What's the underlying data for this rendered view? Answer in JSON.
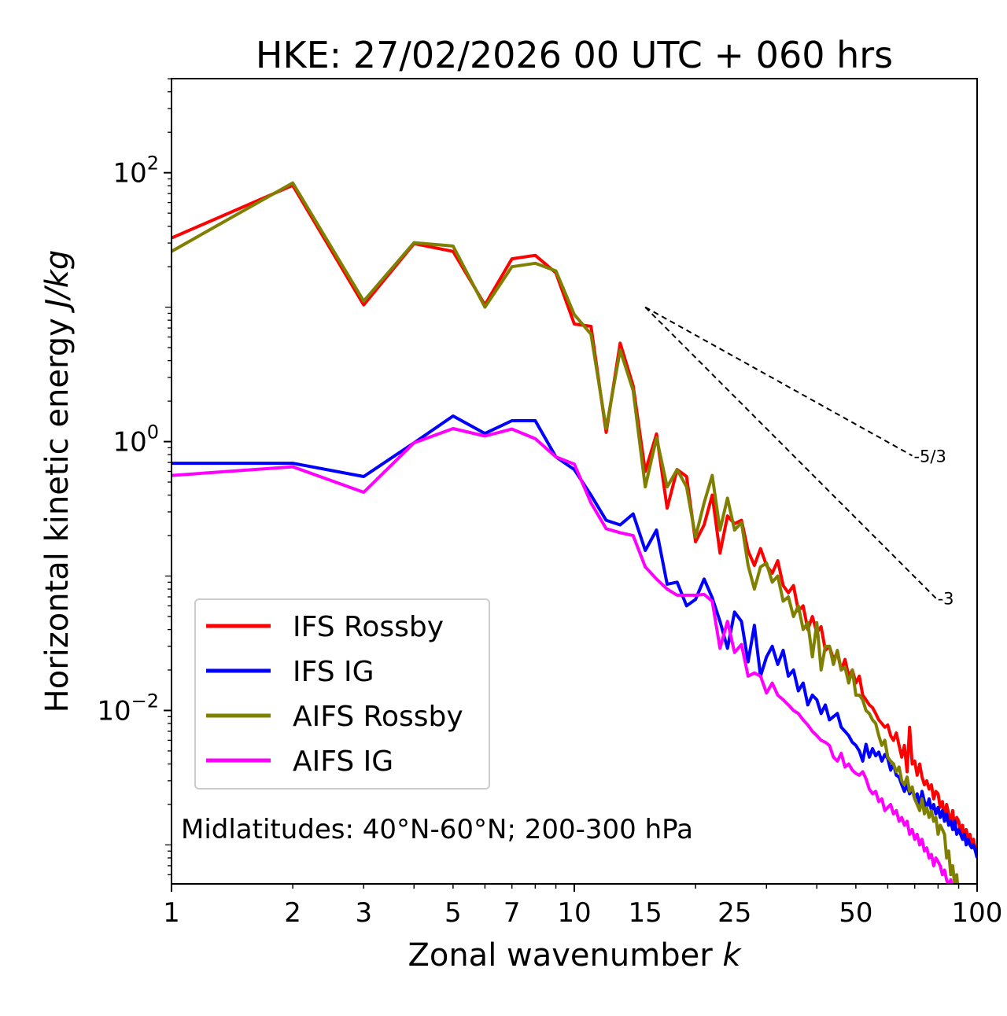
{
  "chart_data": {
    "type": "line",
    "title": "HKE: 27/02/2026 00 UTC + 060 hrs",
    "xlabel": "Zonal wavenumber",
    "xlabel_var": "k",
    "ylabel": "Horizontal kinetic energy",
    "ylabel_unit": "J/kg",
    "xscale": "log",
    "yscale": "log",
    "xlim": [
      1,
      100
    ],
    "ylim_log10": [
      -3.29,
      2.7
    ],
    "x_tick_labels": [
      "1",
      "2",
      "3",
      "5",
      "7",
      "10",
      "15",
      "25",
      "50",
      "100"
    ],
    "x_tick_values": [
      1,
      2,
      3,
      5,
      7,
      10,
      15,
      25,
      50,
      100
    ],
    "y_tick_labels": [
      {
        "base": "10",
        "exp": "2",
        "value": 2
      },
      {
        "base": "10",
        "exp": "0",
        "value": 0
      },
      {
        "base": "10",
        "exp": "−2",
        "value": -2
      }
    ],
    "annotation": "Midlatitudes: 40°N-60°N; 200-300 hPa",
    "legend_position": "lower-left",
    "reference_lines": [
      {
        "label": "-5/3",
        "slope": -1.6667,
        "k_start": 15,
        "k_end": 69,
        "e_start": 10
      },
      {
        "label": "-3",
        "slope": -3,
        "k_start": 15,
        "k_end": 79,
        "e_start": 10
      }
    ],
    "series": [
      {
        "name": "IFS Rossby",
        "color": "#ff0000",
        "values": [
          32.7,
          80.6,
          10.4,
          29.7,
          26,
          10.4,
          22.9,
          24.3,
          18,
          7.5,
          7.2,
          1.17,
          5.4,
          2.6,
          0.6,
          1.14,
          0.32,
          0.62,
          0.55,
          0.18,
          0.24,
          0.4,
          0.148,
          0.28,
          0.245,
          0.26,
          0.154,
          0.12,
          0.16,
          0.12,
          0.105,
          0.13,
          0.085,
          0.075,
          0.085,
          0.055,
          0.06,
          0.04,
          0.05,
          0.038,
          0.042,
          0.028,
          0.03,
          0.024,
          0.027,
          0.02,
          0.024,
          0.018,
          0.02,
          0.016,
          0.018,
          0.013,
          0.012,
          0.011,
          0.0105,
          0.0095,
          0.0085,
          0.008,
          0.0075,
          0.0078,
          0.0065,
          0.006,
          0.0068,
          0.0055,
          0.0045,
          0.0055,
          0.0035,
          0.0075,
          0.004,
          0.0042,
          0.0033,
          0.004,
          0.0032,
          0.0028,
          0.003,
          0.0026,
          0.0028,
          0.0022,
          0.0025,
          0.0024,
          0.0019,
          0.0021,
          0.0016,
          0.002,
          0.0017,
          0.0015,
          0.0018,
          0.0013,
          0.0016,
          0.0015,
          0.0012,
          0.0014,
          0.0011,
          0.0013,
          0.0011,
          0.0012,
          0.001,
          0.0011,
          0.0009,
          0.001
        ]
      },
      {
        "name": "IFS IG",
        "color": "#0000ff",
        "values": [
          0.69,
          0.69,
          0.55,
          0.98,
          1.55,
          1.15,
          1.43,
          1.43,
          0.77,
          0.62,
          0.4,
          0.26,
          0.24,
          0.29,
          0.155,
          0.22,
          0.087,
          0.09,
          0.06,
          0.067,
          0.095,
          0.069,
          0.046,
          0.029,
          0.054,
          0.046,
          0.023,
          0.043,
          0.018,
          0.025,
          0.03,
          0.022,
          0.028,
          0.018,
          0.02,
          0.014,
          0.016,
          0.011,
          0.013,
          0.012,
          0.0095,
          0.011,
          0.0085,
          0.009,
          0.0095,
          0.0075,
          0.007,
          0.0065,
          0.0058,
          0.0055,
          0.005,
          0.0042,
          0.0056,
          0.0045,
          0.0052,
          0.0046,
          0.0049,
          0.0042,
          0.0047,
          0.0044,
          0.0036,
          0.004,
          0.0033,
          0.0032,
          0.0028,
          0.0025,
          0.0028,
          0.0024,
          0.0026,
          0.0022,
          0.0024,
          0.002,
          0.0025,
          0.0021,
          0.0019,
          0.0022,
          0.0018,
          0.002,
          0.0017,
          0.0019,
          0.0016,
          0.0018,
          0.0015,
          0.0017,
          0.0014,
          0.0015,
          0.0013,
          0.0015,
          0.0012,
          0.0013,
          0.0012,
          0.0011,
          0.0012,
          0.001,
          0.0011,
          0.001,
          0.00095,
          0.001,
          0.0009,
          0.0008
        ]
      },
      {
        "name": "AIFS Rossby",
        "color": "#808000",
        "values": [
          26,
          84,
          11.1,
          30.2,
          28.5,
          10,
          20,
          21.2,
          18.6,
          8.8,
          6.3,
          1.25,
          4.8,
          2.4,
          0.46,
          1.07,
          0.46,
          0.62,
          0.46,
          0.195,
          0.35,
          0.56,
          0.22,
          0.38,
          0.22,
          0.25,
          0.12,
          0.08,
          0.117,
          0.125,
          0.09,
          0.1,
          0.065,
          0.07,
          0.05,
          0.06,
          0.04,
          0.045,
          0.025,
          0.045,
          0.02,
          0.03,
          0.03,
          0.022,
          0.028,
          0.02,
          0.021,
          0.016,
          0.02,
          0.013,
          0.013,
          0.012,
          0.01,
          0.0095,
          0.0085,
          0.008,
          0.0065,
          0.0055,
          0.006,
          0.0045,
          0.0042,
          0.004,
          0.0035,
          0.0038,
          0.003,
          0.0028,
          0.0032,
          0.0025,
          0.0027,
          0.0022,
          0.002,
          0.0018,
          0.0022,
          0.0017,
          0.0019,
          0.0016,
          0.0018,
          0.0015,
          0.0016,
          0.0012,
          0.0014,
          0.0013,
          0.0012,
          0.0008,
          0.0009,
          0.0006,
          0.0007,
          0.0005,
          0.0006,
          0.0004,
          0.0004,
          0.00035,
          0.0003,
          0.00032,
          0.00028,
          0.0003,
          0.00026,
          0.00028,
          0.00025,
          0.00024
        ]
      },
      {
        "name": "AIFS IG",
        "color": "#ff00ff",
        "values": [
          0.56,
          0.65,
          0.42,
          0.98,
          1.25,
          1.1,
          1.24,
          1.05,
          0.77,
          0.68,
          0.35,
          0.225,
          0.21,
          0.2,
          0.117,
          0.095,
          0.08,
          0.072,
          0.072,
          0.072,
          0.073,
          0.065,
          0.029,
          0.046,
          0.027,
          0.031,
          0.018,
          0.019,
          0.018,
          0.0135,
          0.016,
          0.013,
          0.012,
          0.011,
          0.01,
          0.0095,
          0.0085,
          0.0078,
          0.007,
          0.0065,
          0.006,
          0.0058,
          0.0055,
          0.0045,
          0.0042,
          0.0048,
          0.0038,
          0.004,
          0.0036,
          0.0034,
          0.0033,
          0.0035,
          0.0031,
          0.0026,
          0.0024,
          0.0025,
          0.0021,
          0.0022,
          0.0018,
          0.0019,
          0.002,
          0.0017,
          0.0018,
          0.0015,
          0.0016,
          0.0014,
          0.0015,
          0.0012,
          0.0013,
          0.0011,
          0.0012,
          0.001,
          0.0011,
          0.0009,
          0.00095,
          0.0008,
          0.00085,
          0.0007,
          0.0008,
          0.00075,
          0.0007,
          0.0006,
          0.00065,
          0.00055,
          0.0005,
          0.00055,
          0.00045,
          0.0005,
          0.0004,
          0.00045,
          0.0004,
          0.00038,
          0.00042,
          0.00035,
          0.0004,
          0.00033,
          0.00036,
          0.0003,
          0.00034,
          0.0003
        ]
      }
    ]
  }
}
